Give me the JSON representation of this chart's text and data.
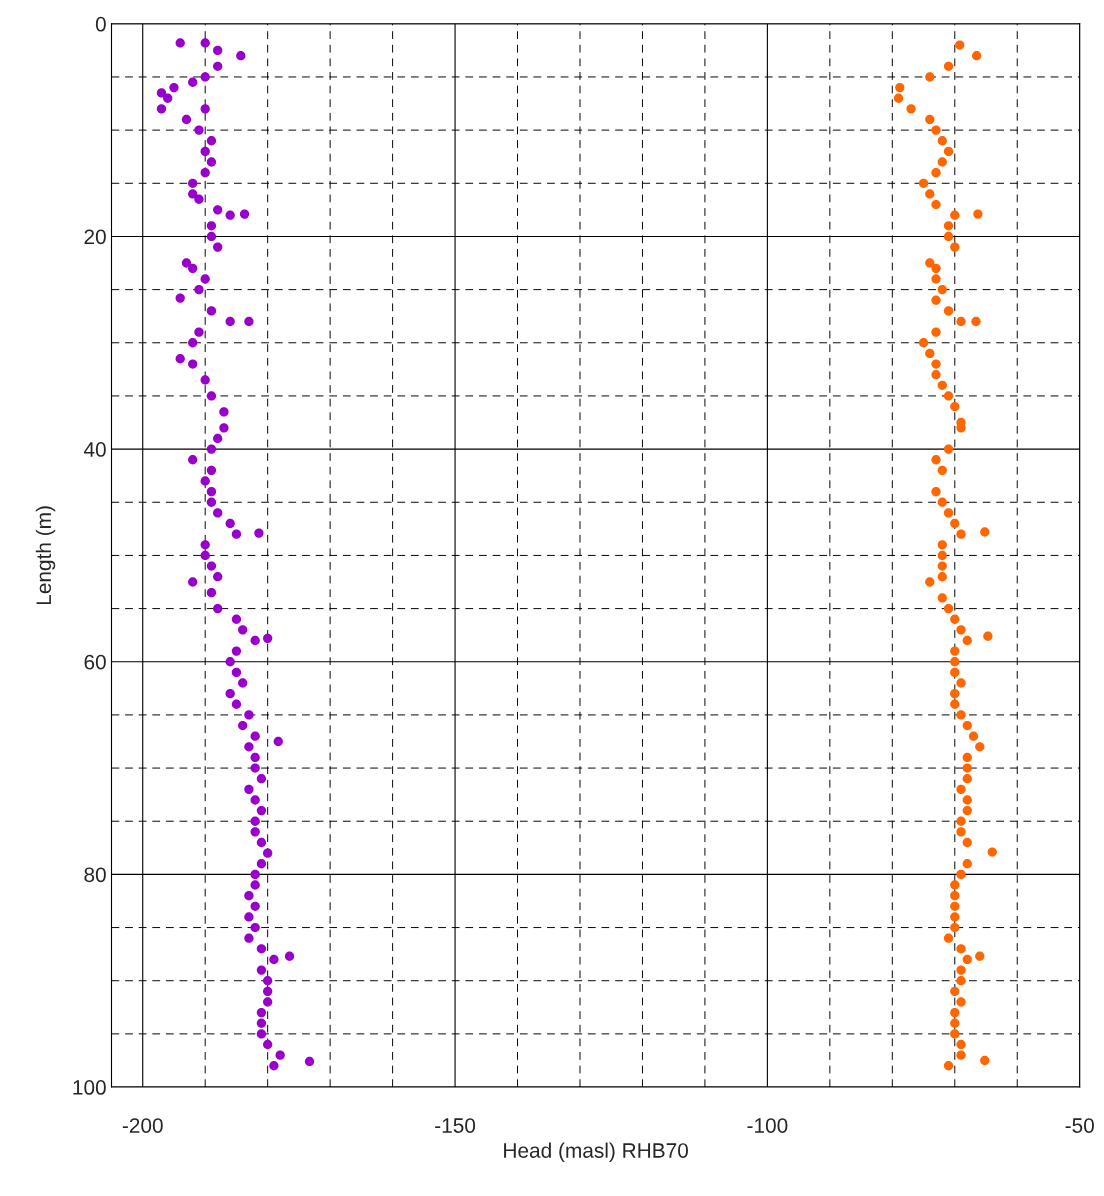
{
  "chart_data": {
    "type": "scatter",
    "xlabel": "Head (masl) RHB70",
    "ylabel": "Length (m)",
    "xlim": [
      -205,
      -50
    ],
    "ylim": [
      100,
      0
    ],
    "xticks": [
      -200,
      {
        "value": -190,
        "label": null
      },
      {
        "value": -180,
        "label": null
      },
      {
        "value": -170,
        "label": null
      },
      {
        "value": -160,
        "label": null
      },
      -150,
      {
        "value": -140,
        "label": null
      },
      {
        "value": -130,
        "label": null
      },
      {
        "value": -120,
        "label": null
      },
      {
        "value": -110,
        "label": null
      },
      -100,
      {
        "value": -90,
        "label": null
      },
      {
        "value": -80,
        "label": null
      },
      {
        "value": -70,
        "label": null
      },
      {
        "value": -60,
        "label": null
      },
      -50
    ],
    "yticks": [
      0,
      {
        "value": 5,
        "label": null
      },
      {
        "value": 10,
        "label": null
      },
      {
        "value": 15,
        "label": null
      },
      20,
      {
        "value": 25,
        "label": null
      },
      {
        "value": 30,
        "label": null
      },
      {
        "value": 35,
        "label": null
      },
      40,
      {
        "value": 45,
        "label": null
      },
      {
        "value": 50,
        "label": null
      },
      {
        "value": 55,
        "label": null
      },
      60,
      {
        "value": 65,
        "label": null
      },
      {
        "value": 70,
        "label": null
      },
      {
        "value": 75,
        "label": null
      },
      80,
      {
        "value": 85,
        "label": null
      },
      {
        "value": 90,
        "label": null
      },
      {
        "value": 95,
        "label": null
      },
      100
    ],
    "grid": true,
    "marker": "circle",
    "legend": false,
    "series": [
      {
        "color": "#9900cc",
        "x": [
          -194,
          -190,
          -188,
          -184.3,
          -188,
          -190,
          -192,
          -195,
          -197,
          -196,
          -197,
          -190,
          -193,
          -191,
          -189,
          -190,
          -189,
          -190,
          -192,
          -192,
          -191,
          -188,
          -186,
          -183.7,
          -189,
          -189,
          -188,
          -193,
          -192,
          -190,
          -191,
          -194,
          -189,
          -186,
          -183,
          -191,
          -192,
          -194,
          -192,
          -190,
          -189,
          -187,
          -187,
          -188,
          -189,
          -192,
          -189,
          -190,
          -189,
          -189,
          -188,
          -186,
          -185,
          -181.4,
          -190,
          -190,
          -189,
          -188,
          -192,
          -189,
          -188,
          -185,
          -184,
          -182,
          -180,
          -185,
          -186,
          -185,
          -184,
          -186,
          -185,
          -183,
          -184,
          -182,
          -178.3,
          -183,
          -182,
          -182,
          -181,
          -183,
          -182,
          -181,
          -182,
          -182,
          -181,
          -180,
          -181,
          -182,
          -182,
          -183,
          -182,
          -183,
          -182,
          -183,
          -181,
          -179,
          -176.5,
          -181,
          -180,
          -180,
          -180,
          -181,
          -181,
          -181,
          -180,
          -178,
          -173.3,
          -179
        ],
        "values": [
          1.8,
          1.8,
          2.5,
          3,
          4,
          5,
          5.5,
          6,
          6.5,
          7,
          8,
          8,
          9,
          10,
          11,
          12,
          13,
          14,
          15,
          16,
          16.5,
          17.5,
          18,
          17.9,
          19,
          20,
          21,
          22.5,
          23,
          24,
          25,
          25.8,
          27,
          28,
          28,
          29,
          30,
          31.5,
          32,
          33.5,
          35,
          36.5,
          38,
          39,
          40,
          41,
          42,
          43,
          44,
          45,
          46,
          47,
          48,
          47.9,
          49,
          50,
          51,
          52,
          52.5,
          53.5,
          55,
          56,
          57,
          58,
          57.8,
          59,
          60,
          61,
          62,
          63,
          64,
          65,
          66,
          67,
          67.5,
          68,
          69,
          70,
          71,
          72,
          73,
          74,
          75,
          76,
          77,
          78,
          79,
          80,
          81,
          82,
          83,
          84,
          85,
          86,
          87,
          88,
          87.7,
          89,
          90,
          91,
          92,
          93,
          94,
          95,
          96,
          97,
          97.6,
          98
        ]
      },
      {
        "color": "#ff6600",
        "x": [
          -69.2,
          -66.5,
          -71,
          -74,
          -78.8,
          -79,
          -77,
          -74,
          -73,
          -72,
          -71,
          -72,
          -73,
          -75,
          -74,
          -73,
          -70,
          -66.3,
          -71,
          -71,
          -70,
          -74,
          -73,
          -73,
          -72,
          -73,
          -71,
          -69,
          -66.6,
          -73,
          -75,
          -74,
          -73,
          -73,
          -72,
          -71,
          -70,
          -69,
          -69,
          -71,
          -73,
          -72,
          -73,
          -72,
          -71,
          -70,
          -69,
          -65.2,
          -72,
          -72,
          -72,
          -72,
          -74,
          -72,
          -71,
          -70,
          -69,
          -68,
          -64.7,
          -70,
          -70,
          -70,
          -69,
          -70,
          -70,
          -69,
          -68,
          -67,
          -66,
          -68,
          -68,
          -68,
          -69,
          -68,
          -68,
          -69,
          -69,
          -68,
          -64,
          -68,
          -69,
          -70,
          -70,
          -70,
          -70,
          -70,
          -71,
          -69,
          -68,
          -66,
          -69,
          -69,
          -70,
          -69,
          -70,
          -70,
          -70,
          -69,
          -69,
          -65.2,
          -71
        ],
        "values": [
          2,
          3,
          4,
          5,
          6,
          7,
          8,
          9,
          10,
          11,
          12,
          13,
          14,
          15,
          16,
          17,
          18,
          17.9,
          19,
          20,
          21,
          22.5,
          23,
          24,
          25,
          26,
          27,
          28,
          28,
          29,
          30,
          31,
          32,
          33,
          34,
          35,
          36,
          37.5,
          38,
          40,
          41,
          42,
          44,
          45,
          46,
          47,
          48,
          47.8,
          49,
          50,
          51,
          52,
          52.5,
          54,
          55,
          56,
          57,
          58,
          57.6,
          59,
          60,
          61,
          62,
          63,
          64,
          65,
          66,
          67,
          68,
          69,
          70,
          71,
          72,
          73,
          74,
          75,
          76,
          77,
          77.9,
          79,
          80,
          81,
          82,
          83,
          84,
          85,
          86,
          87,
          88,
          87.7,
          89,
          90,
          91,
          92,
          93,
          94,
          95,
          96,
          97,
          97.5,
          98
        ]
      }
    ]
  }
}
